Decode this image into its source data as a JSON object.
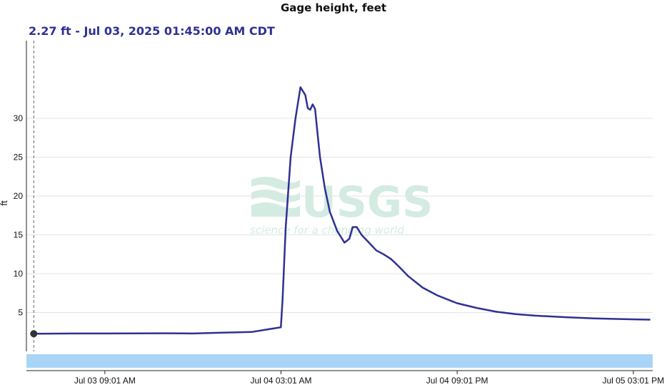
{
  "header": {
    "title": "Gage height, feet",
    "readout": "2.27 ft - Jul 03, 2025 01:45:00 AM CDT"
  },
  "watermark": {
    "logo_text": "USGS",
    "tagline": "science for a changing world"
  },
  "colors": {
    "series": "#2e3192",
    "grid": "#e3e3e3",
    "navigator": "#a8d5f7",
    "marker": "#333333"
  },
  "chart_data": {
    "type": "line",
    "title": "Gage height, feet",
    "xlabel": "",
    "ylabel": "ft",
    "ylim": [
      0,
      40
    ],
    "yticks": [
      5,
      10,
      15,
      20,
      25,
      30
    ],
    "xlim": [
      "2025-07-03 01:00",
      "2025-07-05 17:00"
    ],
    "xticks": [
      {
        "t": "2025-07-03 09:01",
        "label": "Jul 03 09:01 AM"
      },
      {
        "t": "2025-07-04 03:01",
        "label": "Jul 04 03:01 AM"
      },
      {
        "t": "2025-07-04 21:01",
        "label": "Jul 04 09:01 PM"
      },
      {
        "t": "2025-07-05 15:01",
        "label": "Jul 05 03:01 PM"
      }
    ],
    "crosshair": {
      "t": "2025-07-03 01:45",
      "value": 2.27
    },
    "series": [
      {
        "x": [
          "2025-07-03 01:45",
          "2025-07-03 06:00",
          "2025-07-03 09:00",
          "2025-07-03 12:00",
          "2025-07-03 15:00",
          "2025-07-03 18:00",
          "2025-07-03 21:00",
          "2025-07-04 00:00",
          "2025-07-04 01:30",
          "2025-07-04 02:00",
          "2025-07-04 03:00",
          "2025-07-04 03:10",
          "2025-07-04 03:30",
          "2025-07-04 04:00",
          "2025-07-04 04:30",
          "2025-07-04 05:00",
          "2025-07-04 05:30",
          "2025-07-04 05:45",
          "2025-07-04 06:00",
          "2025-07-04 06:15",
          "2025-07-04 06:30",
          "2025-07-04 06:45",
          "2025-07-04 07:00",
          "2025-07-04 07:30",
          "2025-07-04 08:00",
          "2025-07-04 08:45",
          "2025-07-04 09:30",
          "2025-07-04 10:00",
          "2025-07-04 10:20",
          "2025-07-04 10:45",
          "2025-07-04 11:15",
          "2025-07-04 12:00",
          "2025-07-04 12:45",
          "2025-07-04 13:30",
          "2025-07-04 14:15",
          "2025-07-04 15:00",
          "2025-07-04 16:00",
          "2025-07-04 17:30",
          "2025-07-04 19:00",
          "2025-07-04 21:00",
          "2025-07-04 23:00",
          "2025-07-05 01:00",
          "2025-07-05 03:00",
          "2025-07-05 05:00",
          "2025-07-05 08:00",
          "2025-07-05 11:00",
          "2025-07-05 14:00",
          "2025-07-05 16:45"
        ],
        "y": [
          2.27,
          2.3,
          2.3,
          2.32,
          2.33,
          2.3,
          2.4,
          2.5,
          2.8,
          2.9,
          3.1,
          6.5,
          16,
          25,
          30,
          34,
          33,
          31.3,
          31.1,
          31.8,
          31.2,
          28,
          25,
          21,
          18,
          15.5,
          14,
          14.5,
          16,
          16,
          15,
          14,
          13,
          12.5,
          11.9,
          11,
          9.7,
          8.2,
          7.2,
          6.2,
          5.6,
          5.1,
          4.8,
          4.6,
          4.4,
          4.25,
          4.15,
          4.08
        ]
      }
    ],
    "navigator": true
  }
}
